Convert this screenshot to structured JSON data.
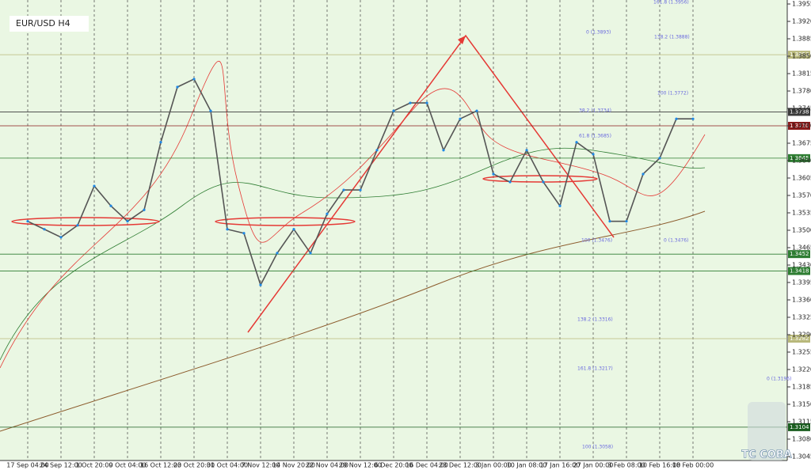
{
  "chart_data": {
    "type": "line",
    "title": "EUR/USD H4",
    "watermark": "TC COBA",
    "categories": [
      "17 Sep 04:00",
      null,
      "24 Sep 12:00",
      null,
      "1 Oct 20:00",
      null,
      "9 Oct 04:00",
      null,
      "16 Oct 12:00",
      null,
      "23 Oct 20:00",
      null,
      "31 Oct 04:00",
      null,
      "7 Nov 12:00",
      null,
      "14 Nov 20:00",
      null,
      "22 Nov 04:00",
      null,
      "29 Nov 12:00",
      null,
      "6 Dec 20:00",
      null,
      "16 Dec 04:00",
      null,
      "23 Dec 12:00",
      null,
      "3 Jan 00:00",
      null,
      "10 Jan 08:00",
      null,
      "17 Jan 16:00",
      null,
      "27 Jan 00:00",
      null,
      "3 Feb 08:00",
      null,
      "10 Feb 16:00",
      null,
      "18 Feb 00:00"
    ],
    "series": [
      {
        "name": "EUR/USD",
        "color": "#555555",
        "values": [
          1.3518,
          1.3502,
          1.3486,
          1.351,
          1.3589,
          1.3549,
          1.3518,
          1.3541,
          1.3677,
          1.3788,
          1.3804,
          1.374,
          1.3502,
          1.3494,
          1.339,
          1.3454,
          1.3502,
          1.3454,
          1.3533,
          1.3581,
          1.3581,
          1.3661,
          1.374,
          1.3756,
          1.3756,
          1.3661,
          1.3724,
          1.374,
          1.3613,
          1.3597,
          1.3661,
          1.3597,
          1.3549,
          1.3677,
          1.3653,
          1.3518,
          1.3518,
          1.3613,
          1.3645,
          1.3724,
          1.3724
        ]
      }
    ],
    "ylim": [
      1.3037,
      1.3963
    ],
    "yticks": [
      {
        "value": 1.3045,
        "label": "1.3045"
      },
      {
        "value": 1.308,
        "label": "1.3080"
      },
      {
        "value": 1.3115,
        "label": "1.3115"
      },
      {
        "value": 1.315,
        "label": "1.3150"
      },
      {
        "value": 1.3185,
        "label": "1.3185"
      },
      {
        "value": 1.322,
        "label": "1.3220"
      },
      {
        "value": 1.3255,
        "label": "1.3255"
      },
      {
        "value": 1.329,
        "label": "1.3290"
      },
      {
        "value": 1.3325,
        "label": "1.3325"
      },
      {
        "value": 1.336,
        "label": "1.3360"
      },
      {
        "value": 1.3395,
        "label": "1.3395"
      },
      {
        "value": 1.343,
        "label": "1.3430"
      },
      {
        "value": 1.3465,
        "label": "1.3465"
      },
      {
        "value": 1.35,
        "label": "1.3500"
      },
      {
        "value": 1.3535,
        "label": "1.3535"
      },
      {
        "value": 1.357,
        "label": "1.3570"
      },
      {
        "value": 1.3605,
        "label": "1.3605"
      },
      {
        "value": 1.364,
        "label": "1.3640"
      },
      {
        "value": 1.3675,
        "label": "1.3675"
      },
      {
        "value": 1.371,
        "label": "1.3710"
      },
      {
        "value": 1.3745,
        "label": "1.3745"
      },
      {
        "value": 1.378,
        "label": "1.3780"
      },
      {
        "value": 1.3815,
        "label": "1.3815"
      },
      {
        "value": 1.385,
        "label": "1.3850"
      },
      {
        "value": 1.3885,
        "label": "1.3885"
      },
      {
        "value": 1.392,
        "label": "1.3920"
      },
      {
        "value": 1.3955,
        "label": "1.3955"
      }
    ],
    "levels": [
      {
        "value": 1.3853,
        "label": "1.3853",
        "color": "#b8b87a"
      },
      {
        "value": 1.3738,
        "label": "1.3738",
        "color": "#3a3a3a"
      },
      {
        "value": 1.371,
        "label": "1.3710",
        "color": "#8b1a1a"
      },
      {
        "value": 1.3645,
        "label": "1.3645",
        "color": "#2e7d32"
      },
      {
        "value": 1.3452,
        "label": "1.3452",
        "color": "#2e7d32"
      },
      {
        "value": 1.3418,
        "label": "1.3418",
        "color": "#2e7d32"
      },
      {
        "value": 1.3282,
        "label": "1.3282",
        "color": "#b8b87a"
      },
      {
        "value": 1.3104,
        "label": "1.3104",
        "color": "#1b5e20"
      }
    ],
    "annotations": [
      "161.8 (1.3956)",
      "0 (1.3893)",
      "138.2 (1.3888)",
      "100 (1.3772)",
      "38.2 (1.3734)",
      "61.8 (1.3685)",
      "100 (1.3476)",
      "0 (1.3476)",
      "138.2 (1.3316)",
      "161.8 (1.3217)",
      "0 (1.3196)",
      "100 (1.3058)"
    ],
    "grid": true
  }
}
